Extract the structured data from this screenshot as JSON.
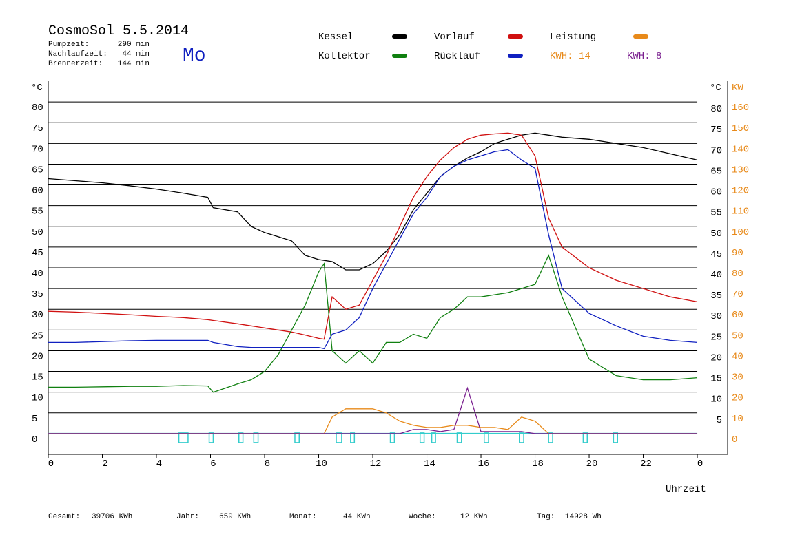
{
  "header": {
    "title": "CosmoSol 5.5.2014",
    "day": "Mo",
    "stats": [
      {
        "label": "Pumpzeit:",
        "value": "290 min"
      },
      {
        "label": "Nachlaufzeit:",
        "value": "44 min"
      },
      {
        "label": "Brennerzeit:",
        "value": "144 min"
      }
    ]
  },
  "chart_data": {
    "type": "line",
    "x": [
      0,
      1,
      2,
      3,
      4,
      5,
      5.9,
      6.1,
      7,
      7.5,
      8,
      8.5,
      9,
      9.5,
      10,
      10.2,
      10.5,
      11,
      11.5,
      12,
      12.5,
      13,
      13.5,
      14,
      14.5,
      15,
      15.5,
      16,
      16.5,
      17,
      17.5,
      18,
      18.5,
      19,
      20,
      21,
      22,
      23,
      24
    ],
    "xlim": [
      0,
      25.12
    ],
    "xticks": [
      0,
      2,
      4,
      6,
      8,
      10,
      12,
      14,
      16,
      18,
      20,
      22,
      {
        "value": 24,
        "label": "0"
      }
    ],
    "xlabel": "Uhrzeit",
    "ylabel": "°C",
    "ylim": [
      -5,
      85
    ],
    "yticks": [
      0,
      5,
      10,
      15,
      20,
      25,
      30,
      35,
      40,
      45,
      50,
      55,
      60,
      65,
      70,
      75,
      80
    ],
    "y_right_label": "°C",
    "y_right_ticks": [
      5,
      10,
      15,
      20,
      25,
      30,
      35,
      40,
      45,
      50,
      55,
      60,
      65,
      70,
      75,
      80
    ],
    "y2label": "KW",
    "y2lim": [
      -10,
      170
    ],
    "y2ticks": [
      0,
      10,
      20,
      30,
      40,
      50,
      60,
      70,
      80,
      90,
      100,
      110,
      120,
      130,
      140,
      150,
      160
    ],
    "grid": true,
    "series": [
      {
        "name": "Kessel",
        "color": "#000000",
        "values": [
          61.5,
          61,
          60.5,
          59.8,
          59,
          58,
          57,
          54.5,
          53.5,
          50,
          48.5,
          47.5,
          46.5,
          43,
          42,
          41.8,
          41.5,
          39.5,
          39.5,
          41,
          44,
          48,
          54,
          58,
          62,
          64.5,
          66.5,
          68,
          70,
          71,
          72,
          72.5,
          72,
          71.5,
          71,
          70,
          69,
          67.5,
          66
        ]
      },
      {
        "name": "Vorlauf",
        "color": "#d01010",
        "values": [
          29.5,
          29.3,
          29,
          28.7,
          28.3,
          28,
          27.5,
          27.3,
          26.5,
          26,
          25.5,
          25,
          24.5,
          23.8,
          23,
          22.8,
          33,
          30,
          31,
          37,
          43,
          50,
          57,
          62,
          66,
          69,
          71,
          72,
          72.3,
          72.5,
          72,
          67,
          52,
          45,
          40,
          37,
          35,
          33,
          31.8
        ]
      },
      {
        "name": "Leistung",
        "color": "#e88a1a",
        "axis": "y2",
        "values": [
          0,
          0,
          0,
          0,
          0,
          0,
          0,
          0,
          0,
          0,
          0,
          0,
          0,
          0,
          0,
          0,
          8,
          12,
          12,
          12,
          10,
          6,
          4,
          3,
          3,
          4,
          4,
          3,
          3,
          2,
          8,
          6,
          0,
          0,
          0,
          0,
          0,
          0,
          0
        ]
      },
      {
        "name": "Kollektor",
        "color": "#108010",
        "values": [
          11.2,
          11.2,
          11.3,
          11.4,
          11.4,
          11.6,
          11.5,
          10,
          12,
          13,
          15,
          19,
          25,
          31,
          39,
          41,
          20,
          17,
          20,
          17,
          22,
          22,
          24,
          23,
          28,
          30,
          33,
          33,
          33.5,
          34,
          35,
          36,
          43,
          33,
          18,
          14,
          13,
          13,
          13.5
        ]
      },
      {
        "name": "Rücklauf",
        "color": "#1020c0",
        "values": [
          22,
          22,
          22.2,
          22.4,
          22.5,
          22.5,
          22.5,
          22,
          21,
          20.8,
          20.8,
          20.8,
          20.8,
          20.8,
          20.8,
          20.5,
          24,
          25,
          28,
          35,
          41,
          47,
          53,
          57,
          62,
          64.5,
          66,
          67,
          68,
          68.5,
          66,
          64,
          48,
          35,
          29,
          26,
          23.5,
          22.5,
          22
        ]
      },
      {
        "name": "KWH: 8",
        "color": "#7a1f8f",
        "axis": "y2",
        "legend_marker": false,
        "values": [
          0,
          0,
          0,
          0,
          0,
          0,
          0,
          0,
          0,
          0,
          0,
          0,
          0,
          0,
          0,
          0,
          0,
          0,
          0,
          0,
          0,
          0,
          2,
          2,
          1,
          2,
          22,
          1,
          1,
          1,
          1,
          0,
          0,
          0,
          0,
          0,
          0,
          0,
          0
        ]
      }
    ],
    "kwh_label": {
      "text": "KWH: 14",
      "color": "#e88a1a"
    },
    "pump": {
      "color": "#33cccc",
      "intervals": [
        [
          4.83,
          5.17
        ],
        [
          5.95,
          6.1
        ],
        [
          7.05,
          7.2
        ],
        [
          7.6,
          7.76
        ],
        [
          9.12,
          9.28
        ],
        [
          10.65,
          10.85
        ],
        [
          11.18,
          11.32
        ],
        [
          12.65,
          12.8
        ],
        [
          13.75,
          13.9
        ],
        [
          14.18,
          14.32
        ],
        [
          15.12,
          15.28
        ],
        [
          16.12,
          16.28
        ],
        [
          17.42,
          17.58
        ],
        [
          18.5,
          18.65
        ],
        [
          19.78,
          19.93
        ],
        [
          20.9,
          21.05
        ]
      ]
    }
  },
  "footer": [
    {
      "label": "Gesamt:",
      "value": "39706 KWh"
    },
    {
      "label": "Jahr:",
      "value": "659 KWh"
    },
    {
      "label": "Monat:",
      "value": "44 KWh"
    },
    {
      "label": "Woche:",
      "value": "12 KWh"
    },
    {
      "label": "Tag:",
      "value": "14928 Wh"
    }
  ]
}
